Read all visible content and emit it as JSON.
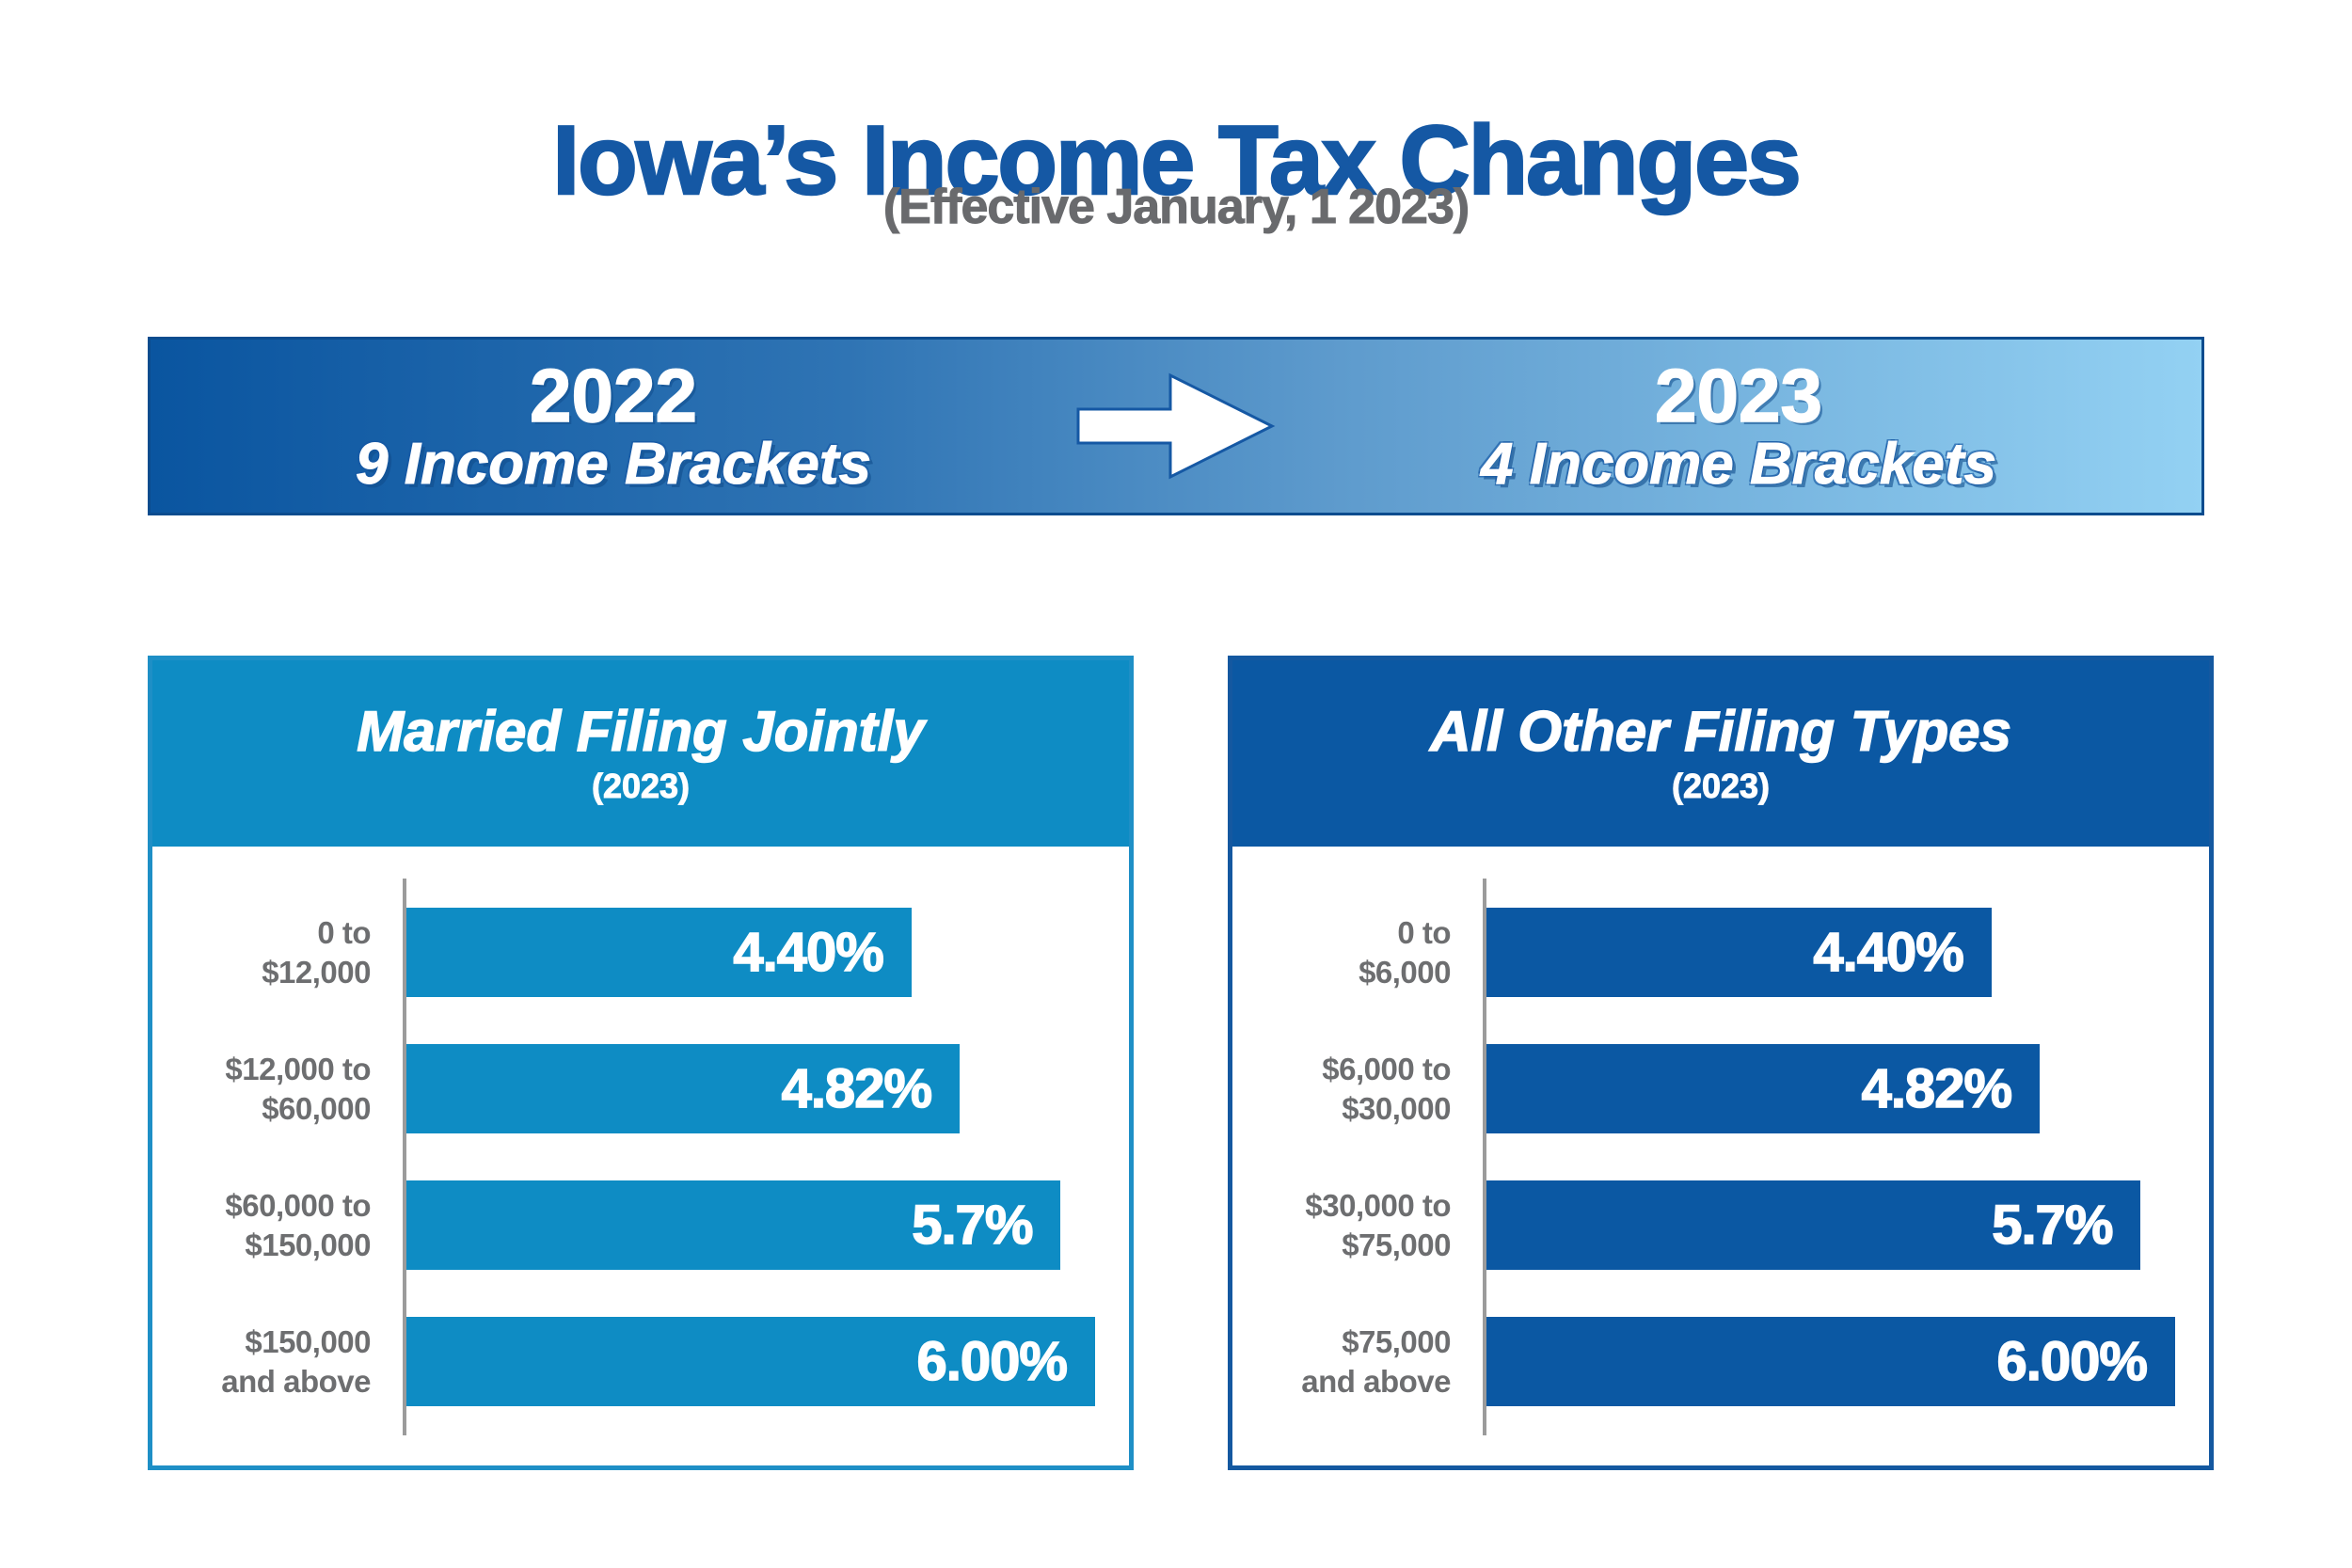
{
  "page": {
    "title": "Iowa’s Income Tax Changes",
    "subtitle": "(Effective January, 1 2023)"
  },
  "banner": {
    "left": {
      "year": "2022",
      "label": "9 Income Brackets"
    },
    "right": {
      "year": "2023",
      "label": "4 Income Brackets"
    },
    "arrow_icon": "right-arrow"
  },
  "colors": {
    "title_blue": "#1558A4",
    "subtitle_gray": "#696A6D",
    "banner_grad_start": "#0A55A0",
    "banner_grad_end": "#93D1F3",
    "banner_border": "#0B4C8E",
    "left_accent": "#0E8CC4",
    "left_border": "#1E8FC6",
    "right_accent": "#0B58A3",
    "right_border": "#1458A0",
    "label_gray": "#6D6E70",
    "axis_gray": "#9B9B9B"
  },
  "chart_data": [
    {
      "type": "bar",
      "orientation": "horizontal",
      "title": "Married Filing Jointly",
      "subtitle": "(2023)",
      "categories": [
        "0 to\n$12,000",
        "$12,000 to\n$60,000",
        "$60,000 to\n$150,000",
        "$150,000\nand above"
      ],
      "values": [
        4.4,
        4.82,
        5.7,
        6.0
      ],
      "value_labels": [
        "4.40%",
        "4.82%",
        "5.7%",
        "6.00%"
      ],
      "xlabel": "",
      "ylabel": "",
      "xlim": [
        0,
        6.3
      ],
      "grid": false,
      "legend": false,
      "bar_color": "#0E8CC4"
    },
    {
      "type": "bar",
      "orientation": "horizontal",
      "title": "All Other Filing Types",
      "subtitle": "(2023)",
      "categories": [
        "0 to\n$6,000",
        "$6,000 to\n$30,000",
        "$30,000 to\n$75,000",
        "$75,000\nand above"
      ],
      "values": [
        4.4,
        4.82,
        5.7,
        6.0
      ],
      "value_labels": [
        "4.40%",
        "4.82%",
        "5.7%",
        "6.00%"
      ],
      "xlabel": "",
      "ylabel": "",
      "xlim": [
        0,
        6.3
      ],
      "grid": false,
      "legend": false,
      "bar_color": "#0B58A3"
    }
  ]
}
